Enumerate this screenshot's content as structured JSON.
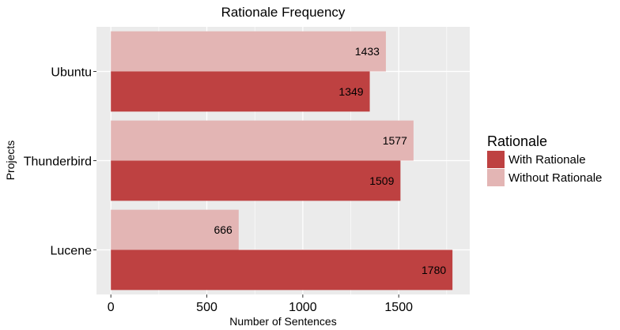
{
  "chart_data": {
    "type": "bar",
    "orientation": "horizontal",
    "title": "Rationale Frequency",
    "xlabel": "Number of Sentences",
    "ylabel": "Projects",
    "categories": [
      "Ubuntu",
      "Thunderbird",
      "Lucene"
    ],
    "series": [
      {
        "name": "Without Rationale",
        "color": "#e3b5b4",
        "values": [
          1433,
          1577,
          666
        ]
      },
      {
        "name": "With Rationale",
        "color": "#be4141",
        "values": [
          1349,
          1509,
          1780
        ]
      }
    ],
    "xlim": [
      -75,
      1870
    ],
    "xticks": [
      0,
      500,
      1000,
      1500
    ],
    "grid": true,
    "legend": {
      "title": "Rationale",
      "placement": "right",
      "entries": [
        "With Rationale",
        "Without Rationale"
      ]
    }
  }
}
